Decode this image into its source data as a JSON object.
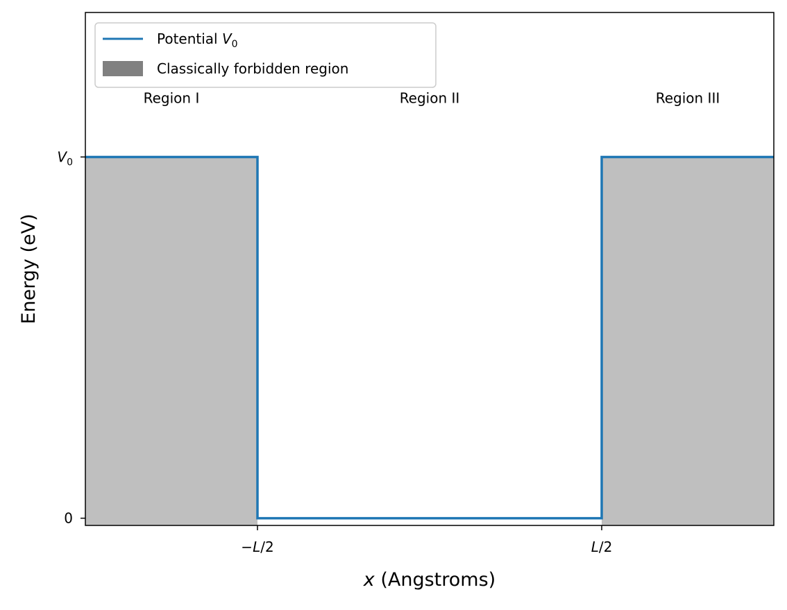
{
  "chart_data": {
    "type": "line",
    "title": "",
    "xlabel": {
      "var": "x",
      "rest": " (Angstroms)"
    },
    "ylabel": "Energy (eV)",
    "xlim": [
      -1.0,
      1.0
    ],
    "ylim": [
      -0.02,
      1.4
    ],
    "grid": false,
    "legend_placement": "top-left",
    "x_ticks": [
      {
        "value": -0.5,
        "minus": "−",
        "var": "L",
        "rest": "/2"
      },
      {
        "value": 0.5,
        "minus": "",
        "var": "L",
        "rest": "/2"
      }
    ],
    "y_ticks": [
      {
        "value": 0,
        "var": "",
        "sub": "",
        "text": "0"
      },
      {
        "value": 1,
        "var": "V",
        "sub": "0",
        "text": ""
      }
    ],
    "series": [
      {
        "name": {
          "text": "Potential ",
          "var": "V",
          "sub": "0"
        },
        "color": "#1f77b4",
        "x": [
          -1.0,
          -0.5,
          -0.5,
          0.5,
          0.5,
          1.0
        ],
        "y": [
          1,
          1,
          0,
          0,
          1,
          1
        ]
      }
    ],
    "shaded_regions": [
      {
        "name": "Classically forbidden region",
        "x": [
          -1.0,
          -0.5
        ],
        "y_top": 1,
        "fill": "#808080",
        "opacity": 0.5
      },
      {
        "name": "Classically forbidden region",
        "x": [
          0.5,
          1.0
        ],
        "y_top": 1,
        "fill": "#808080",
        "opacity": 0.5
      }
    ],
    "legend_patch_color": "#808080",
    "annotations": [
      {
        "text": "Region I",
        "x": -0.75,
        "y": 1.15
      },
      {
        "text": "Region II",
        "x": 0.0,
        "y": 1.15
      },
      {
        "text": "Region III",
        "x": 0.75,
        "y": 1.15
      }
    ]
  }
}
